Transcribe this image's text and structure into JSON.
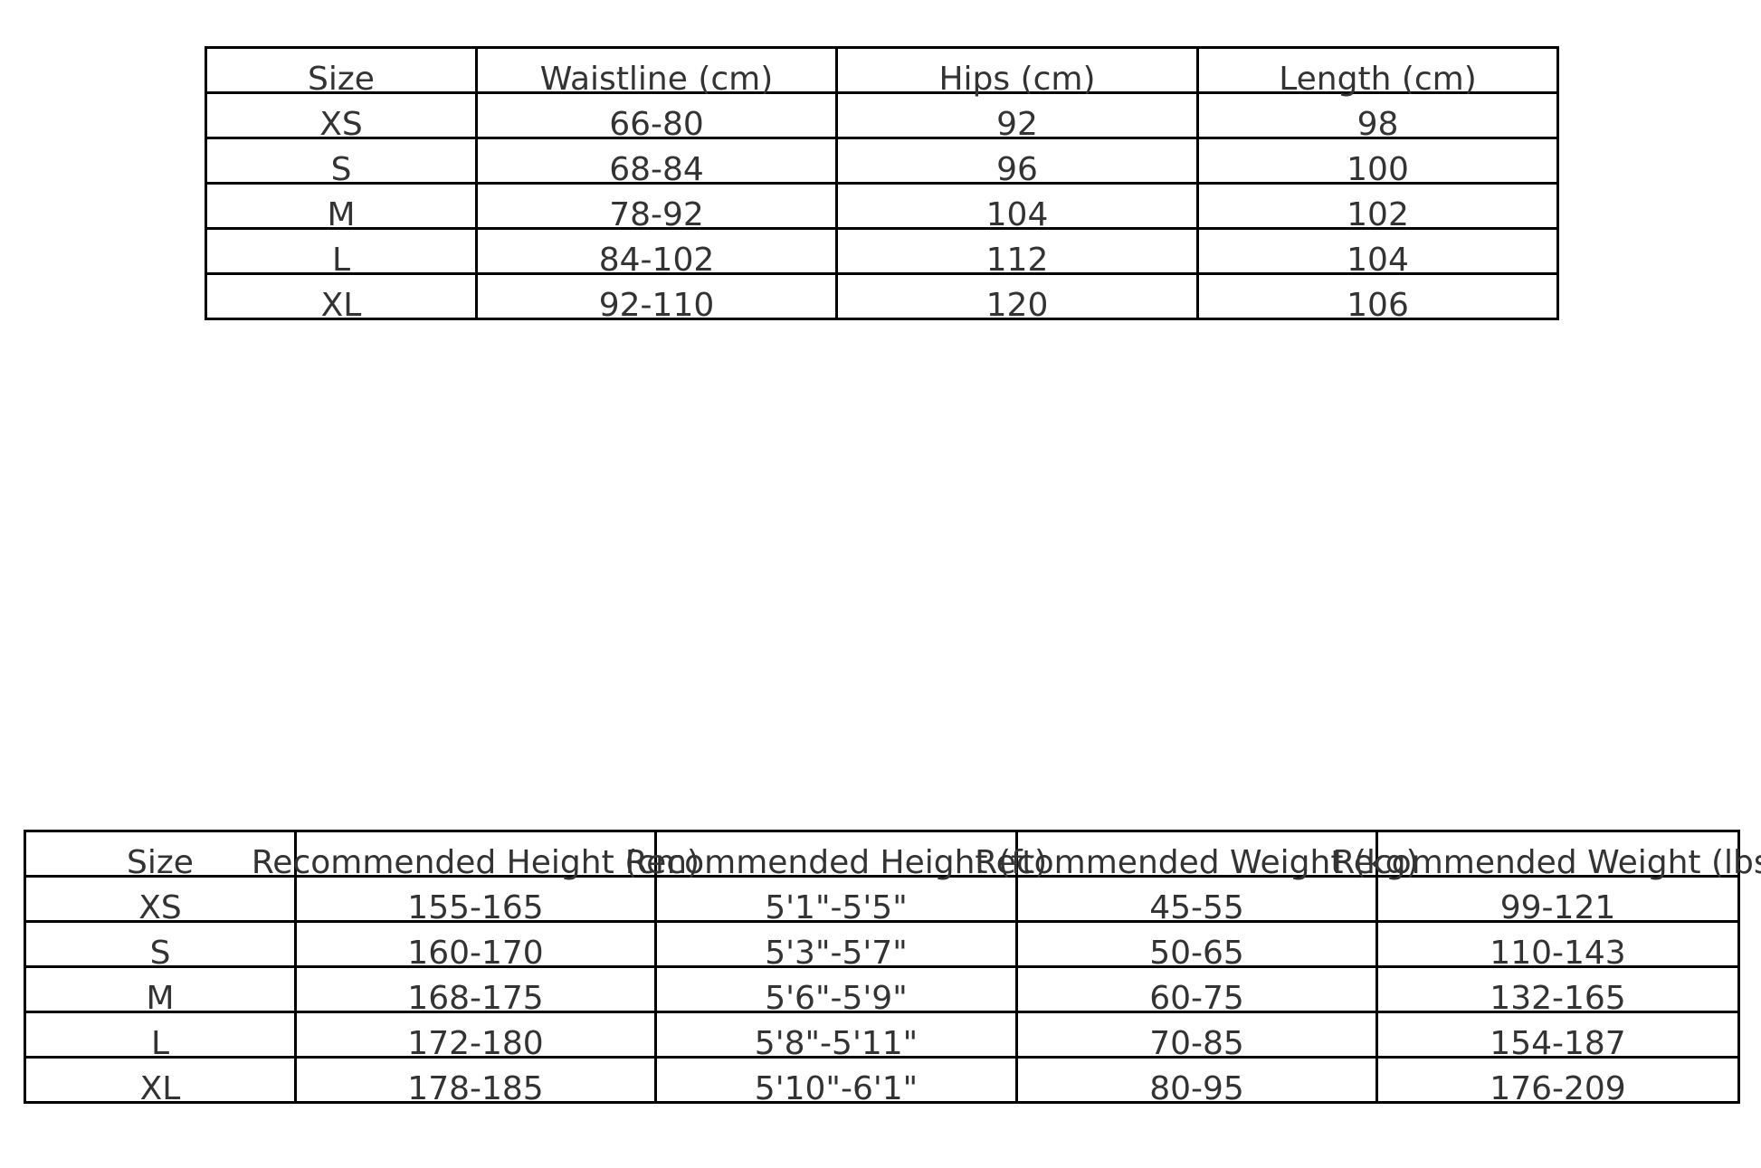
{
  "measurements_table": {
    "headers": [
      "Size",
      "Waistline (cm)",
      "Hips (cm)",
      "Length (cm)"
    ],
    "rows": [
      [
        "XS",
        "66-80",
        "92",
        "98"
      ],
      [
        "S",
        "68-84",
        "96",
        "100"
      ],
      [
        "M",
        "78-92",
        "104",
        "102"
      ],
      [
        "L",
        "84-102",
        "112",
        "104"
      ],
      [
        "XL",
        "92-110",
        "120",
        "106"
      ]
    ]
  },
  "recommendation_table": {
    "headers": [
      "Size",
      "Recommended Height (cm)",
      "Recommended Height (ft)",
      "Recommended Weight (kg)",
      "Recommended Weight (lbs)"
    ],
    "rows": [
      [
        "XS",
        "155-165",
        "5'1\"-5'5\"",
        "45-55",
        "99-121"
      ],
      [
        "S",
        "160-170",
        "5'3\"-5'7\"",
        "50-65",
        "110-143"
      ],
      [
        "M",
        "168-175",
        "5'6\"-5'9\"",
        "60-75",
        "132-165"
      ],
      [
        "L",
        "172-180",
        "5'8\"-5'11\"",
        "70-85",
        "154-187"
      ],
      [
        "XL",
        "178-185",
        "5'10\"-6'1\"",
        "80-95",
        "176-209"
      ]
    ]
  }
}
